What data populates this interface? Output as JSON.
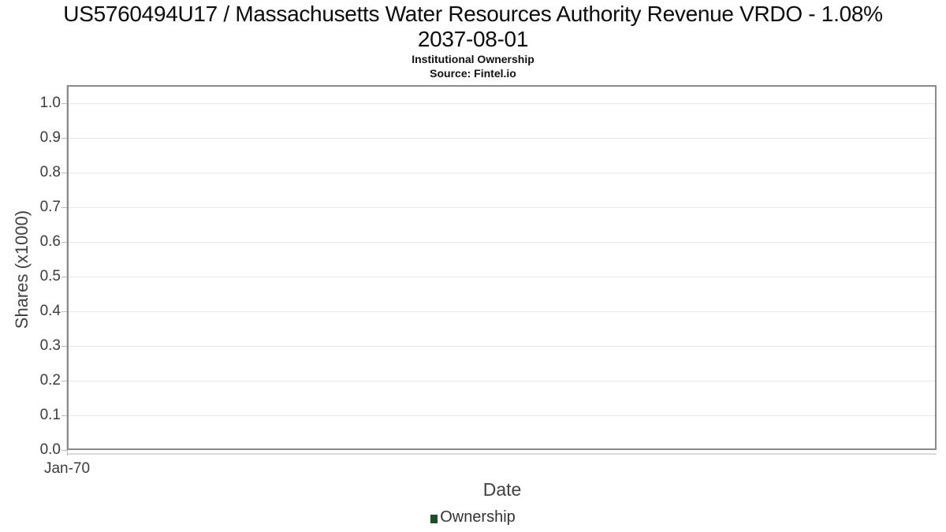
{
  "chart_data": {
    "type": "line",
    "title_line1": "US5760494U17 / Massachusetts Water Resources Authority Revenue VRDO - 1.08%",
    "title_line2": "2037-08-01",
    "subtitle": "Institutional Ownership",
    "source": "Source: Fintel.io",
    "xlabel": "Date",
    "ylabel": "Shares (x1000)",
    "x_ticks": [
      "Jan-70"
    ],
    "y_ticks": [
      0.0,
      0.1,
      0.2,
      0.3,
      0.4,
      0.5,
      0.6,
      0.7,
      0.8,
      0.9,
      1.0
    ],
    "ylim": [
      0,
      1.05
    ],
    "grid": "horizontal",
    "legend_position": "bottom-center",
    "series": [
      {
        "name": "Ownership",
        "color": "#1d4d2b",
        "x": [],
        "values": []
      }
    ]
  },
  "colors": {
    "plot_border": "#8a8a8a",
    "gridline": "#e9e9e9",
    "tick": "#b9b9b9",
    "tick_label": "#3b3b3b",
    "axis_title": "#414141",
    "title_text": "#0c0c0c",
    "legend_green": "#1d4d2b"
  }
}
